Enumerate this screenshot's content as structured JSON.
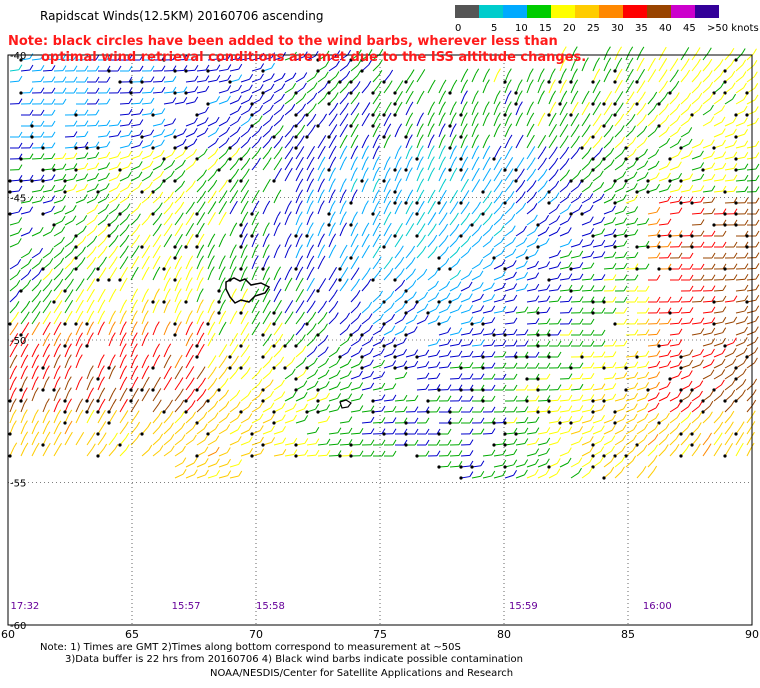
{
  "title": "Rapidscat Winds(12.5KM) 20160706 ascending",
  "note": {
    "line1": "Note: black circles have been added to the wind barbs, wherever less than",
    "line2": "optimal wind retrieval conditions are met due to the ISS altitude changes."
  },
  "legend": {
    "labels": [
      "0",
      "5",
      "10",
      "15",
      "20",
      "25",
      "30",
      "35",
      "40",
      "45",
      ">50 knots"
    ],
    "colors": [
      "#555555",
      "#00cccc",
      "#00aaff",
      "#00cc00",
      "#ffff00",
      "#ffcc00",
      "#ff8800",
      "#ff0000",
      "#994400",
      "#cc00cc",
      "#330099"
    ]
  },
  "map": {
    "lon_labels": [
      "60",
      "65",
      "70",
      "75",
      "80",
      "85",
      "90"
    ],
    "lat_labels": [
      "-40",
      "-45",
      "-50",
      "-55",
      "-60"
    ],
    "time_labels": [
      {
        "text": "17:32",
        "lon": 60.1
      },
      {
        "text": "15:57",
        "lon": 66.6
      },
      {
        "text": "15:58",
        "lon": 70.0
      },
      {
        "text": "15:59",
        "lon": 80.2
      },
      {
        "text": "16:00",
        "lon": 85.6
      }
    ]
  },
  "footer": {
    "line1": "Note: 1) Times are GMT 2)Times along bottom correspond to measurement at ~50S",
    "line2": "3)Data buffer is 22 hrs from 20160706 4) Black wind barbs indicate possible contamination",
    "line3": "NOAA/NESDIS/Center for Satellite Applications and Research"
  }
}
